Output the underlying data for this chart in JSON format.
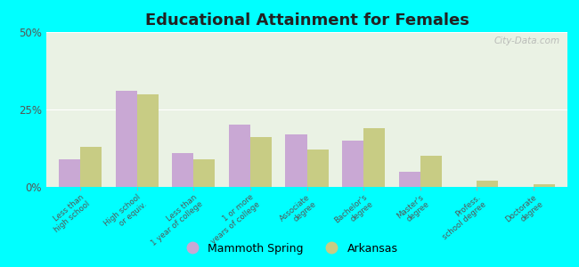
{
  "title": "Educational Attainment for Females",
  "categories": [
    "Less than\nhigh school",
    "High school\nor equiv.",
    "Less than\n1 year of college",
    "1 or more\nyears of college",
    "Associate\ndegree",
    "Bachelor's\ndegree",
    "Master's\ndegree",
    "Profess.\nschool degree",
    "Doctorate\ndegree"
  ],
  "mammoth_spring": [
    9,
    31,
    11,
    20,
    17,
    15,
    5,
    0,
    0
  ],
  "arkansas": [
    13,
    30,
    9,
    16,
    12,
    19,
    10,
    2,
    1
  ],
  "mammoth_color": "#c9a8d4",
  "arkansas_color": "#c8cc84",
  "bg_color": "#00ffff",
  "plot_bg_color": "#eaf2e4",
  "ylim": [
    0,
    50
  ],
  "yticks": [
    0,
    25,
    50
  ],
  "ytick_labels": [
    "0%",
    "25%",
    "50%"
  ],
  "watermark": "City-Data.com",
  "legend_mammoth": "Mammoth Spring",
  "legend_arkansas": "Arkansas",
  "title_fontsize": 13,
  "bar_width": 0.38
}
